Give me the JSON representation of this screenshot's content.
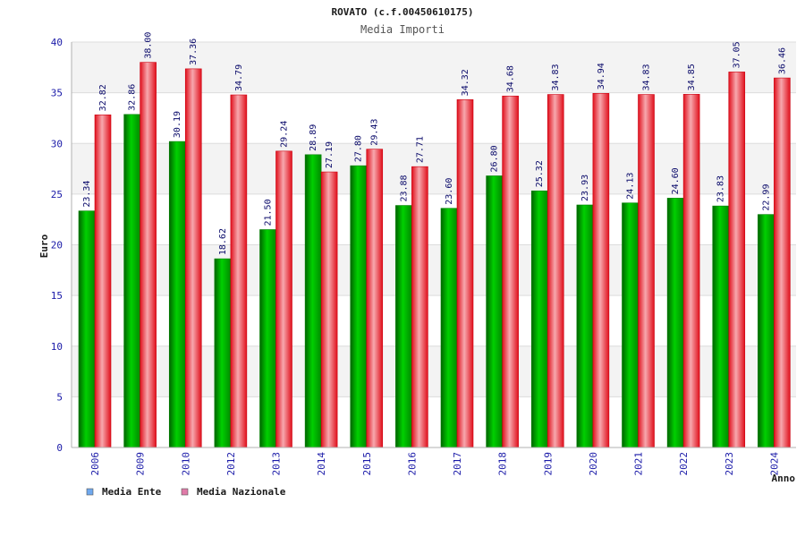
{
  "chart_data": {
    "type": "bar",
    "title": "ROVATO (c.f.00450610175)",
    "subtitle": "Media Importi",
    "xlabel": "Anno",
    "ylabel": "Euro",
    "ylim": [
      0,
      40
    ],
    "yticks": [
      "0",
      "5",
      "10",
      "15",
      "20",
      "25",
      "30",
      "35",
      "40"
    ],
    "categories": [
      "2006",
      "2009",
      "2010",
      "2012",
      "2013",
      "2014",
      "2015",
      "2016",
      "2017",
      "2018",
      "2019",
      "2020",
      "2021",
      "2022",
      "2023",
      "2024"
    ],
    "series": [
      {
        "name": "Media Ente",
        "values": [
          23.34,
          32.86,
          30.19,
          18.62,
          21.5,
          28.89,
          27.8,
          23.88,
          23.6,
          26.8,
          25.32,
          23.93,
          24.13,
          24.6,
          23.83,
          22.99
        ],
        "labels": [
          "23.34",
          "32.86",
          "30.19",
          "18.62",
          "21.50",
          "28.89",
          "27.80",
          "23.88",
          "23.60",
          "26.80",
          "25.32",
          "23.93",
          "24.13",
          "24.60",
          "23.83",
          "22.99"
        ],
        "color": "#00b400",
        "legend_color": "#6fa8ee"
      },
      {
        "name": "Media Nazionale",
        "values": [
          32.82,
          38.0,
          37.36,
          34.79,
          29.24,
          27.19,
          29.43,
          27.71,
          34.32,
          34.68,
          34.83,
          34.94,
          34.83,
          34.85,
          37.05,
          36.46
        ],
        "labels": [
          "32.82",
          "38.00",
          "37.36",
          "34.79",
          "29.24",
          "27.19",
          "29.43",
          "27.71",
          "34.32",
          "34.68",
          "34.83",
          "34.94",
          "34.83",
          "34.85",
          "37.05",
          "36.46"
        ],
        "color": "#e8101e",
        "legend_color": "#e07aa8"
      }
    ],
    "legend_position": "bottom-left",
    "grid": true
  }
}
